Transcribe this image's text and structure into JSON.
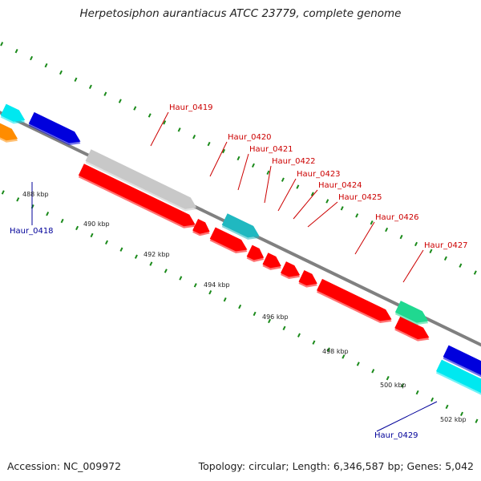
{
  "title": "Herpetosiphon aurantiacus ATCC 23779, complete genome",
  "accession_text": "Accession: NC_009972",
  "summary_text": "Topology: circular; Length: 6,346,587 bp; Genes: 5,042",
  "colors": {
    "backbone": "#808080",
    "minor_tick": "#1a8a1a",
    "red_gene": "#ff0000",
    "label_red": "#cc0000",
    "label_blue": "#000099"
  },
  "tick_labels": [
    "488 kbp",
    "490 kbp",
    "492 kbp",
    "494 kbp",
    "496 kbp",
    "498 kbp",
    "500 kbp",
    "502 kbp"
  ],
  "gene_labels": [
    {
      "id": "Haur_0418",
      "color": "#000099"
    },
    {
      "id": "Haur_0419",
      "color": "#cc0000"
    },
    {
      "id": "Haur_0420",
      "color": "#cc0000"
    },
    {
      "id": "Haur_0421",
      "color": "#cc0000"
    },
    {
      "id": "Haur_0422",
      "color": "#cc0000"
    },
    {
      "id": "Haur_0423",
      "color": "#cc0000"
    },
    {
      "id": "Haur_0424",
      "color": "#cc0000"
    },
    {
      "id": "Haur_0425",
      "color": "#cc0000"
    },
    {
      "id": "Haur_0426",
      "color": "#cc0000"
    },
    {
      "id": "Haur_0427",
      "color": "#cc0000"
    },
    {
      "id": "Haur_0429",
      "color": "#000099"
    }
  ],
  "genes": [
    {
      "color": "#ff0000"
    },
    {
      "color": "#ff0000"
    },
    {
      "color": "#ff0000"
    },
    {
      "color": "#ff0000"
    },
    {
      "color": "#ff0000"
    },
    {
      "color": "#ff0000"
    },
    {
      "color": "#ff0000"
    },
    {
      "color": "#ff0000"
    },
    {
      "color": "#ff0000"
    },
    {
      "color": "#c8c8c8"
    },
    {
      "color": "#20b8c0"
    },
    {
      "color": "#20d890"
    },
    {
      "color": "#0000dd"
    },
    {
      "color": "#0000dd"
    },
    {
      "color": "#00e8f0"
    },
    {
      "color": "#ff8c00"
    },
    {
      "color": "#00e8f0"
    }
  ]
}
